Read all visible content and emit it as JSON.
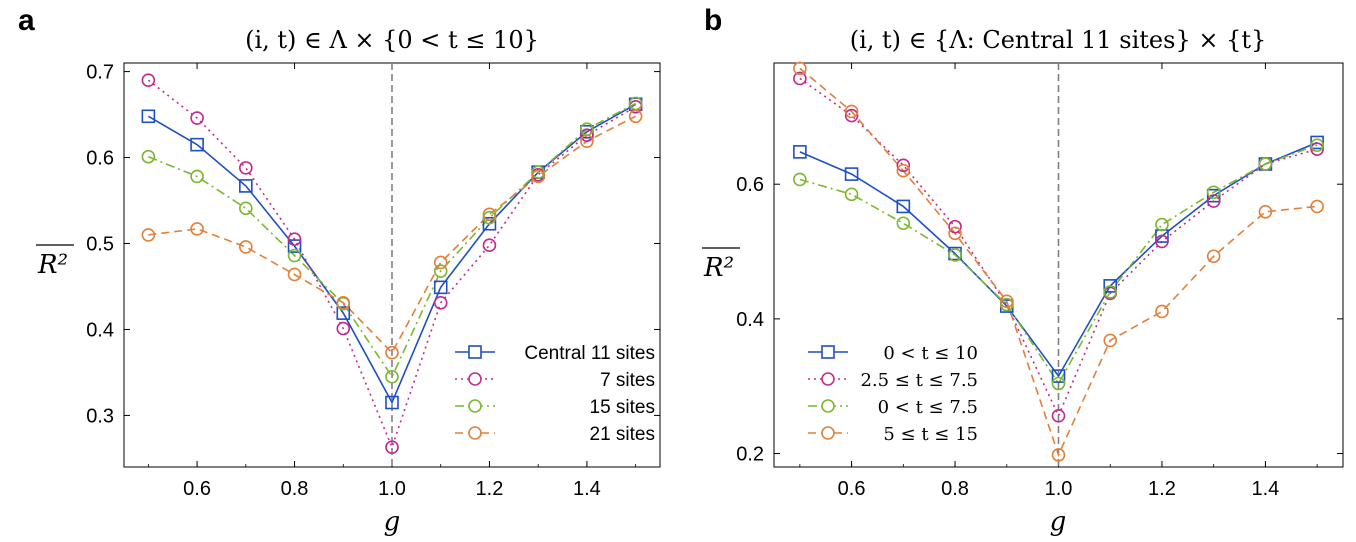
{
  "chart_data": [
    {
      "panel": "a",
      "type": "line",
      "title": "(i, t) ∈ Λ × {0 < t ≤ 10}",
      "xlabel": "g",
      "ylabel": "R²",
      "xlim": [
        0.45,
        1.55
      ],
      "ylim": [
        0.24,
        0.71
      ],
      "xticks": [
        0.6,
        0.8,
        1.0,
        1.2,
        1.4
      ],
      "xtick_labels": [
        "0.6",
        "0.8",
        "1.0",
        "1.2",
        "1.4"
      ],
      "yticks": [
        0.3,
        0.4,
        0.5,
        0.6,
        0.7
      ],
      "ytick_labels": [
        "0.3",
        "0.4",
        "0.5",
        "0.6",
        "0.7"
      ],
      "vertical_line": 1.0,
      "legend_position": "lower-right",
      "x": [
        0.5,
        0.6,
        0.7,
        0.8,
        0.9,
        1.0,
        1.1,
        1.2,
        1.3,
        1.4,
        1.5
      ],
      "series": [
        {
          "name": "Central 11 sites",
          "color": "#1f4fc4",
          "marker": "square",
          "dash": "solid",
          "values": [
            0.648,
            0.615,
            0.567,
            0.497,
            0.419,
            0.315,
            0.449,
            0.523,
            0.583,
            0.63,
            0.662
          ]
        },
        {
          "name": "7  sites",
          "color": "#c32a8f",
          "marker": "circle",
          "dash": "dotted",
          "values": [
            0.69,
            0.646,
            0.588,
            0.505,
            0.401,
            0.263,
            0.431,
            0.498,
            0.58,
            0.626,
            0.659
          ]
        },
        {
          "name": "15 sites",
          "color": "#7cb82f",
          "marker": "circle",
          "dash": "dashdot",
          "values": [
            0.601,
            0.578,
            0.541,
            0.486,
            0.43,
            0.345,
            0.468,
            0.53,
            0.583,
            0.633,
            0.663
          ]
        },
        {
          "name": "21 sites",
          "color": "#e0803a",
          "marker": "circle",
          "dash": "dashed",
          "values": [
            0.51,
            0.517,
            0.496,
            0.464,
            0.431,
            0.373,
            0.478,
            0.534,
            0.578,
            0.619,
            0.648
          ]
        }
      ]
    },
    {
      "panel": "b",
      "type": "line",
      "title": "(i, t) ∈ {Λ: Central 11 sites} × {t}",
      "xlabel": "g",
      "ylabel": "R²",
      "xlim": [
        0.45,
        1.55
      ],
      "ylim": [
        0.18,
        0.78
      ],
      "xticks": [
        0.6,
        0.8,
        1.0,
        1.2,
        1.4
      ],
      "xtick_labels": [
        "0.6",
        "0.8",
        "1.0",
        "1.2",
        "1.4"
      ],
      "yticks": [
        0.2,
        0.4,
        0.6
      ],
      "ytick_labels": [
        "0.2",
        "0.4",
        "0.6"
      ],
      "vertical_line": 1.0,
      "legend_position": "lower-left",
      "x": [
        0.5,
        0.6,
        0.7,
        0.8,
        0.9,
        1.0,
        1.1,
        1.2,
        1.3,
        1.4,
        1.5
      ],
      "series": [
        {
          "name": "0 < t ≤ 10",
          "color": "#1f4fc4",
          "marker": "square",
          "dash": "solid",
          "values": [
            0.648,
            0.615,
            0.567,
            0.497,
            0.419,
            0.315,
            0.449,
            0.523,
            0.583,
            0.63,
            0.662
          ]
        },
        {
          "name": "2.5 ≤ t ≤ 7.5",
          "color": "#c32a8f",
          "marker": "circle",
          "dash": "dotted",
          "values": [
            0.757,
            0.702,
            0.628,
            0.537,
            0.421,
            0.256,
            0.438,
            0.515,
            0.575,
            0.63,
            0.652
          ]
        },
        {
          "name": "0 < t ≤ 7.5",
          "color": "#7cb82f",
          "marker": "circle",
          "dash": "dashdot",
          "values": [
            0.607,
            0.585,
            0.542,
            0.495,
            0.421,
            0.304,
            0.44,
            0.54,
            0.588,
            0.63,
            0.658
          ]
        },
        {
          "name": "5 ≤ t ≤ 15",
          "color": "#e0803a",
          "marker": "circle",
          "dash": "dashed",
          "values": [
            0.772,
            0.708,
            0.62,
            0.527,
            0.426,
            0.198,
            0.368,
            0.411,
            0.493,
            0.559,
            0.567
          ]
        }
      ]
    }
  ],
  "labels": {
    "panel_a": "a",
    "panel_b": "b"
  }
}
